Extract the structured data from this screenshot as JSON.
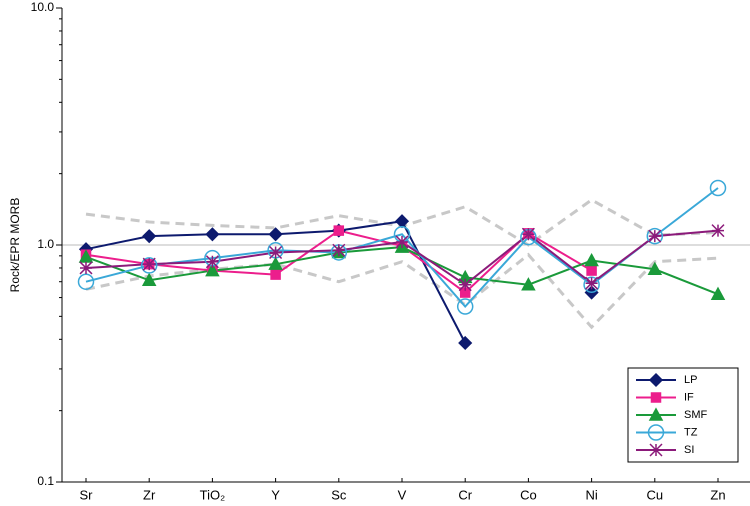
{
  "chart_data": {
    "type": "line",
    "y_label": "Rock/EPR MORB",
    "categories": [
      "Sr",
      "Zr",
      "TiO₂",
      "Y",
      "Sc",
      "V",
      "Cr",
      "Co",
      "Ni",
      "Cu",
      "Zn"
    ],
    "ylim": [
      0.1,
      10
    ],
    "yticks": [
      0.1,
      {
        "value": 1,
        "label": "1.0"
      },
      {
        "value": 10,
        "label": "10.0"
      }
    ],
    "yminor_ticks": [
      0.2,
      0.3,
      0.4,
      0.5,
      0.6,
      0.7,
      0.8,
      0.9,
      2,
      3,
      4,
      5,
      6,
      7,
      8,
      9
    ],
    "log_scale": true,
    "reference_line": 1,
    "legend": "lower right",
    "envelope": {
      "color": "#c8c8c8",
      "lines": [
        [
          1.35,
          1.25,
          1.21,
          1.18,
          1.33,
          1.2,
          1.45,
          1.0,
          1.55,
          1.1,
          1.13
        ],
        [
          0.65,
          0.74,
          0.79,
          0.83,
          0.7,
          0.85,
          0.56,
          0.91,
          0.45,
          0.85,
          0.88
        ]
      ]
    },
    "series": [
      {
        "name": "LP",
        "color": "#0d1a6e",
        "marker": "diamond",
        "values": [
          0.96,
          1.09,
          1.11,
          1.11,
          1.15,
          1.26,
          0.386,
          null,
          0.63,
          null,
          null
        ]
      },
      {
        "name": "IF",
        "color": "#ec1e8c",
        "marker": "square",
        "values": [
          0.91,
          0.83,
          0.78,
          0.75,
          1.15,
          0.99,
          0.63,
          1.12,
          0.78,
          null,
          null
        ]
      },
      {
        "name": "SMF",
        "color": "#1a9a3a",
        "marker": "triangle",
        "values": [
          0.89,
          0.71,
          0.78,
          0.83,
          0.93,
          0.98,
          0.73,
          0.68,
          0.86,
          0.79,
          0.62
        ]
      },
      {
        "name": "TZ",
        "color": "#3aa8d8",
        "marker": "circle",
        "values": [
          0.7,
          0.82,
          0.88,
          0.95,
          0.93,
          1.11,
          0.55,
          1.08,
          0.68,
          1.09,
          1.74
        ]
      },
      {
        "name": "SI",
        "color": "#8b1a7a",
        "marker": "asterisk",
        "values": [
          0.8,
          0.83,
          0.85,
          0.93,
          0.95,
          1.03,
          0.68,
          1.11,
          0.69,
          1.09,
          1.15
        ]
      }
    ]
  }
}
